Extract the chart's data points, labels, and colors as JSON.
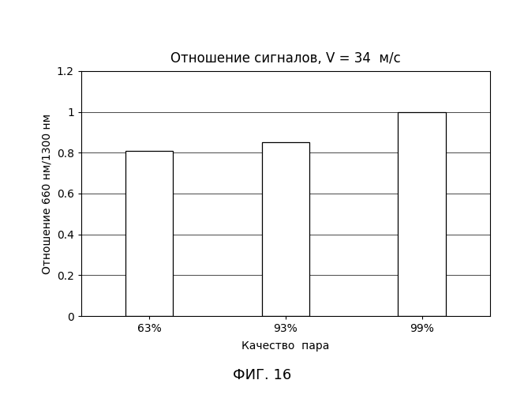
{
  "title": "Отношение сигналов, V = 34  м/с",
  "xlabel": "Качество  пара",
  "ylabel": "Отношение 660 нм/1300 нм",
  "categories": [
    "63%",
    "93%",
    "99%"
  ],
  "values": [
    0.81,
    0.85,
    1.0
  ],
  "ylim": [
    0,
    1.2
  ],
  "yticks": [
    0,
    0.2,
    0.4,
    0.6,
    0.8,
    1.0,
    1.2
  ],
  "bar_color": "#ffffff",
  "background_color": "#ffffff",
  "caption": "ФИГ. 16",
  "title_fontsize": 12,
  "label_fontsize": 10,
  "tick_fontsize": 10,
  "caption_fontsize": 13,
  "bar_width": 0.35,
  "n_dots": 4000,
  "dot_size": 0.4,
  "dot_color": "#222222",
  "dot_alpha": 0.85
}
